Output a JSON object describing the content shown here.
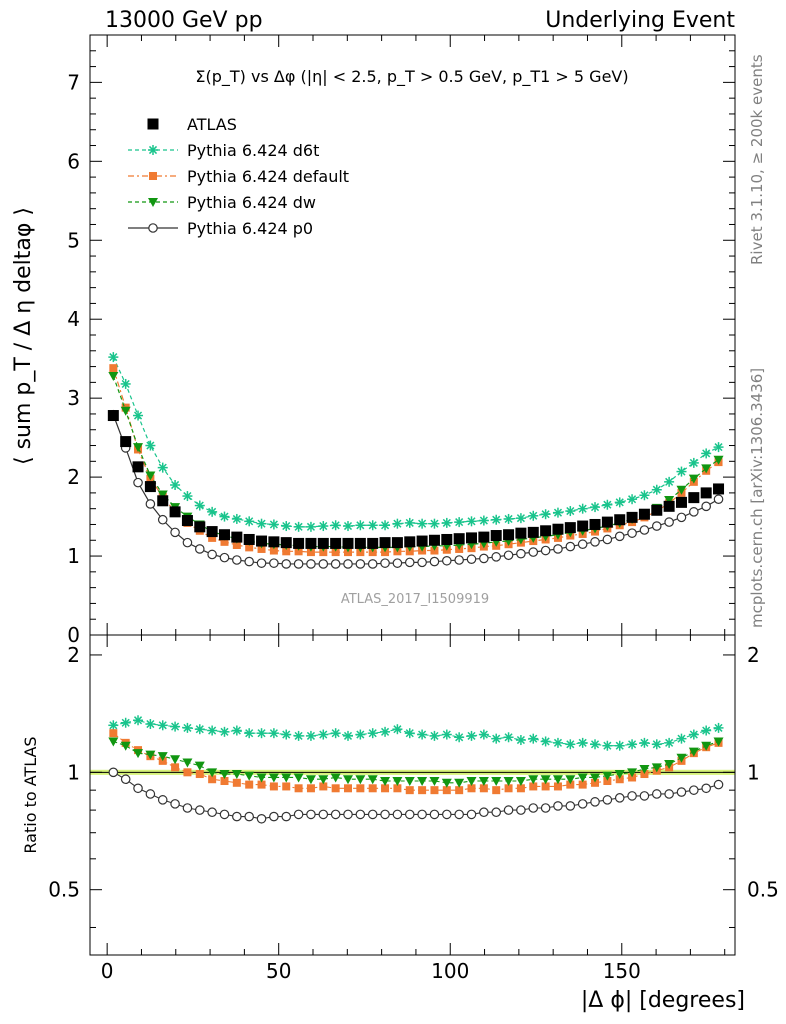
{
  "header": {
    "left": "13000 GeV pp",
    "right": "Underlying Event"
  },
  "side_text": {
    "rivet": "Rivet 3.1.10, ≥ 200k events",
    "mcplots": "mcplots.cern.ch [arXiv:1306.3436]"
  },
  "watermark": "ATLAS_2017_I1509919",
  "colors": {
    "ATLAS": "#000000",
    "d6t": "#19c48c",
    "default": "#f07a32",
    "dw": "#119611",
    "p0": "#333333",
    "band": "#d6f27a"
  },
  "chart_data": [
    {
      "type": "scatter",
      "title": "Σ(p_T) vs Δφ (|η| < 2.5, p_T > 0.5 GeV, p_T1 > 5 GeV)",
      "ylabel": "⟨ sum p_T / Δ η deltaφ ⟩",
      "xlim": [
        -5,
        183
      ],
      "ylim": [
        0,
        7.6
      ],
      "yticks": [
        0,
        1,
        2,
        3,
        4,
        5,
        6,
        7
      ],
      "legend_position": "top-left",
      "x": [
        1.8,
        5.4,
        9.0,
        12.6,
        16.2,
        19.8,
        23.4,
        27.0,
        30.6,
        34.2,
        37.8,
        41.4,
        45.0,
        48.6,
        52.2,
        55.8,
        59.4,
        63.0,
        66.6,
        70.2,
        73.8,
        77.4,
        81.0,
        84.6,
        88.2,
        91.8,
        95.4,
        99.0,
        102.6,
        106.2,
        109.8,
        113.4,
        117.0,
        120.6,
        124.2,
        127.8,
        131.4,
        135.0,
        138.6,
        142.2,
        145.8,
        149.4,
        153.0,
        156.6,
        160.2,
        163.8,
        167.4,
        171.0,
        174.6,
        178.2
      ],
      "series": [
        {
          "name": "ATLAS",
          "marker": "square",
          "values": [
            2.78,
            2.45,
            2.13,
            1.88,
            1.7,
            1.56,
            1.45,
            1.37,
            1.31,
            1.27,
            1.24,
            1.21,
            1.19,
            1.18,
            1.17,
            1.16,
            1.16,
            1.16,
            1.16,
            1.16,
            1.16,
            1.16,
            1.17,
            1.17,
            1.18,
            1.19,
            1.2,
            1.21,
            1.22,
            1.23,
            1.24,
            1.26,
            1.27,
            1.29,
            1.3,
            1.32,
            1.34,
            1.36,
            1.38,
            1.4,
            1.43,
            1.46,
            1.49,
            1.53,
            1.58,
            1.63,
            1.68,
            1.74,
            1.8,
            1.85
          ]
        },
        {
          "name": "Pythia 6.424 d6t",
          "marker": "star",
          "line": "dashed",
          "values": [
            3.52,
            3.18,
            2.78,
            2.4,
            2.12,
            1.9,
            1.76,
            1.64,
            1.56,
            1.5,
            1.47,
            1.44,
            1.41,
            1.4,
            1.38,
            1.37,
            1.37,
            1.38,
            1.39,
            1.38,
            1.39,
            1.39,
            1.39,
            1.41,
            1.42,
            1.41,
            1.41,
            1.42,
            1.43,
            1.44,
            1.45,
            1.46,
            1.47,
            1.48,
            1.51,
            1.53,
            1.55,
            1.57,
            1.6,
            1.62,
            1.65,
            1.68,
            1.72,
            1.77,
            1.84,
            1.94,
            2.07,
            2.18,
            2.3,
            2.38
          ]
        },
        {
          "name": "Pythia 6.424 default",
          "marker": "square-small",
          "line": "dashdot",
          "values": [
            3.38,
            2.88,
            2.35,
            1.98,
            1.75,
            1.56,
            1.42,
            1.32,
            1.23,
            1.18,
            1.14,
            1.11,
            1.09,
            1.07,
            1.06,
            1.06,
            1.05,
            1.05,
            1.05,
            1.05,
            1.05,
            1.05,
            1.05,
            1.06,
            1.06,
            1.07,
            1.07,
            1.08,
            1.09,
            1.1,
            1.12,
            1.13,
            1.15,
            1.17,
            1.19,
            1.21,
            1.23,
            1.26,
            1.28,
            1.31,
            1.35,
            1.39,
            1.43,
            1.49,
            1.57,
            1.67,
            1.8,
            1.94,
            2.08,
            2.19
          ]
        },
        {
          "name": "Pythia 6.424 dw",
          "marker": "triangle-down",
          "line": "dashed",
          "values": [
            3.28,
            2.84,
            2.38,
            2.02,
            1.78,
            1.62,
            1.5,
            1.4,
            1.31,
            1.26,
            1.22,
            1.19,
            1.16,
            1.15,
            1.14,
            1.13,
            1.12,
            1.12,
            1.12,
            1.11,
            1.11,
            1.11,
            1.11,
            1.11,
            1.12,
            1.12,
            1.13,
            1.13,
            1.14,
            1.15,
            1.16,
            1.18,
            1.19,
            1.21,
            1.23,
            1.25,
            1.27,
            1.3,
            1.32,
            1.35,
            1.38,
            1.42,
            1.47,
            1.53,
            1.61,
            1.71,
            1.84,
            1.98,
            2.11,
            2.22
          ]
        },
        {
          "name": "Pythia 6.424 p0",
          "marker": "circle-open",
          "line": "solid",
          "values": [
            2.79,
            2.37,
            1.93,
            1.66,
            1.46,
            1.3,
            1.17,
            1.09,
            1.02,
            0.98,
            0.95,
            0.93,
            0.91,
            0.91,
            0.9,
            0.9,
            0.9,
            0.9,
            0.9,
            0.9,
            0.9,
            0.9,
            0.91,
            0.91,
            0.92,
            0.92,
            0.93,
            0.94,
            0.95,
            0.96,
            0.97,
            0.99,
            1.01,
            1.03,
            1.05,
            1.07,
            1.09,
            1.12,
            1.15,
            1.18,
            1.21,
            1.25,
            1.29,
            1.33,
            1.38,
            1.43,
            1.49,
            1.56,
            1.63,
            1.72
          ]
        }
      ]
    },
    {
      "type": "scatter",
      "ylabel": "Ratio to ATLAS",
      "xlabel": "|Δ ϕ| [degrees]",
      "xlim": [
        -5,
        183
      ],
      "xticks": [
        0,
        50,
        100,
        150
      ],
      "ylim": [
        0.34,
        2.25
      ],
      "yticks": [
        0.5,
        1,
        2
      ],
      "ytick_labels": [
        "0.5",
        "1",
        "2"
      ],
      "reference_band": [
        0.985,
        1.015
      ],
      "series_ratio": [
        {
          "name": "Pythia 6.424 d6t",
          "values": [
            1.32,
            1.34,
            1.36,
            1.33,
            1.32,
            1.31,
            1.3,
            1.29,
            1.28,
            1.27,
            1.28,
            1.26,
            1.26,
            1.26,
            1.25,
            1.24,
            1.24,
            1.25,
            1.26,
            1.24,
            1.25,
            1.26,
            1.27,
            1.29,
            1.26,
            1.25,
            1.24,
            1.25,
            1.23,
            1.24,
            1.25,
            1.22,
            1.23,
            1.21,
            1.22,
            1.2,
            1.19,
            1.18,
            1.19,
            1.18,
            1.17,
            1.17,
            1.18,
            1.19,
            1.18,
            1.19,
            1.22,
            1.25,
            1.28,
            1.3
          ]
        },
        {
          "name": "Pythia 6.424 default",
          "values": [
            1.26,
            1.19,
            1.14,
            1.1,
            1.07,
            1.03,
            1.0,
            0.99,
            0.96,
            0.95,
            0.94,
            0.93,
            0.93,
            0.92,
            0.92,
            0.91,
            0.91,
            0.92,
            0.91,
            0.91,
            0.91,
            0.91,
            0.91,
            0.91,
            0.9,
            0.9,
            0.9,
            0.9,
            0.9,
            0.91,
            0.91,
            0.9,
            0.91,
            0.91,
            0.92,
            0.92,
            0.92,
            0.93,
            0.93,
            0.94,
            0.95,
            0.96,
            0.97,
            0.99,
            1.01,
            1.03,
            1.07,
            1.12,
            1.16,
            1.19
          ]
        },
        {
          "name": "Pythia 6.424 dw",
          "values": [
            1.2,
            1.17,
            1.12,
            1.11,
            1.1,
            1.08,
            1.06,
            1.04,
            1.0,
            0.99,
            0.99,
            0.98,
            0.97,
            0.97,
            0.97,
            0.97,
            0.96,
            0.96,
            0.97,
            0.96,
            0.96,
            0.96,
            0.95,
            0.95,
            0.95,
            0.95,
            0.95,
            0.94,
            0.94,
            0.95,
            0.95,
            0.95,
            0.95,
            0.95,
            0.96,
            0.96,
            0.96,
            0.96,
            0.97,
            0.97,
            0.98,
            0.99,
            1.0,
            1.02,
            1.03,
            1.05,
            1.09,
            1.13,
            1.17,
            1.2
          ]
        },
        {
          "name": "Pythia 6.424 p0",
          "values": [
            1.0,
            0.96,
            0.91,
            0.88,
            0.85,
            0.83,
            0.81,
            0.8,
            0.79,
            0.78,
            0.77,
            0.77,
            0.76,
            0.77,
            0.77,
            0.78,
            0.78,
            0.78,
            0.78,
            0.78,
            0.78,
            0.78,
            0.78,
            0.78,
            0.78,
            0.78,
            0.78,
            0.78,
            0.78,
            0.78,
            0.79,
            0.79,
            0.8,
            0.8,
            0.81,
            0.81,
            0.82,
            0.82,
            0.83,
            0.84,
            0.85,
            0.86,
            0.87,
            0.87,
            0.88,
            0.88,
            0.89,
            0.9,
            0.91,
            0.93
          ]
        }
      ]
    }
  ]
}
